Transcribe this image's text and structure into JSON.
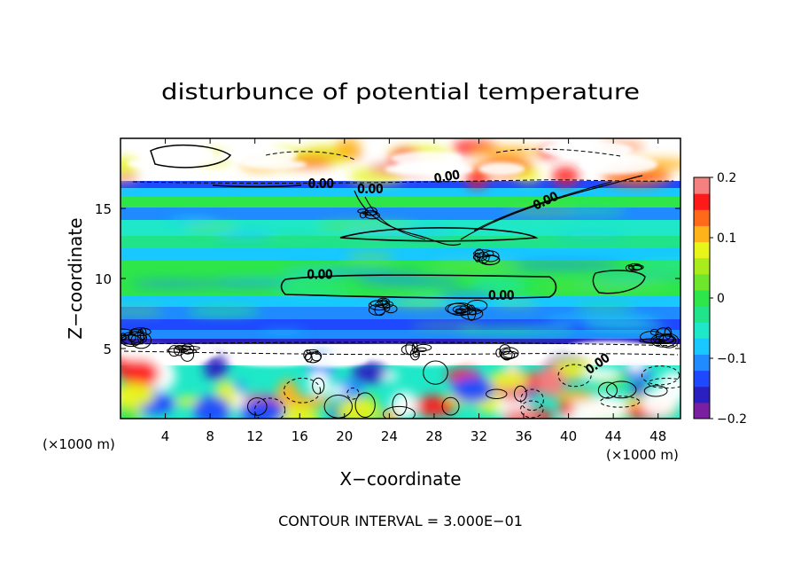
{
  "chart_data": {
    "type": "heatmap",
    "title": "disturbunce of potential temperature",
    "xlabel": "X−coordinate",
    "ylabel": "Z−coordinate",
    "x_unit_left": "(×1000 m)",
    "x_unit_right": "(×1000 m)",
    "xlim": [
      0,
      50
    ],
    "ylim": [
      0,
      20
    ],
    "x_ticks": [
      4,
      8,
      12,
      16,
      20,
      24,
      28,
      32,
      36,
      40,
      44,
      48
    ],
    "y_ticks": [
      5,
      10,
      15
    ],
    "colorbar": {
      "range": [
        -0.2,
        0.2
      ],
      "tick_labels": [
        "0.2",
        "0.1",
        "0",
        "−0.1",
        "−0.2"
      ],
      "tick_values": [
        0.2,
        0.1,
        0,
        -0.1,
        -0.2
      ],
      "colors": [
        "#7a1fa2",
        "#2a1fc0",
        "#1f49ff",
        "#1f8bff",
        "#18c8ff",
        "#1fe8c8",
        "#21e38a",
        "#2ee64a",
        "#6ee62c",
        "#a8ec1e",
        "#e8f51a",
        "#ffb31a",
        "#ff6a1a",
        "#ff1a1a",
        "#f58080"
      ]
    },
    "contour_labels": [
      {
        "text": "0.00",
        "x": 17.9,
        "z": 16.5,
        "angle": 0
      },
      {
        "text": "0.00",
        "x": 22.3,
        "z": 16.1,
        "angle": 0
      },
      {
        "text": "0.00",
        "x": 29.2,
        "z": 17.0,
        "angle": -10
      },
      {
        "text": "0.00",
        "x": 38.1,
        "z": 15.3,
        "angle": -25
      },
      {
        "text": "0.00",
        "x": 17.8,
        "z": 10.0,
        "angle": 0
      },
      {
        "text": "0.00",
        "x": 34.0,
        "z": 8.5,
        "angle": 0
      },
      {
        "text": "0.00",
        "x": 42.8,
        "z": 3.7,
        "angle": -35
      }
    ],
    "grid": false
  },
  "footer": {
    "contour_interval": "CONTOUR INTERVAL = 3.000E−01"
  }
}
